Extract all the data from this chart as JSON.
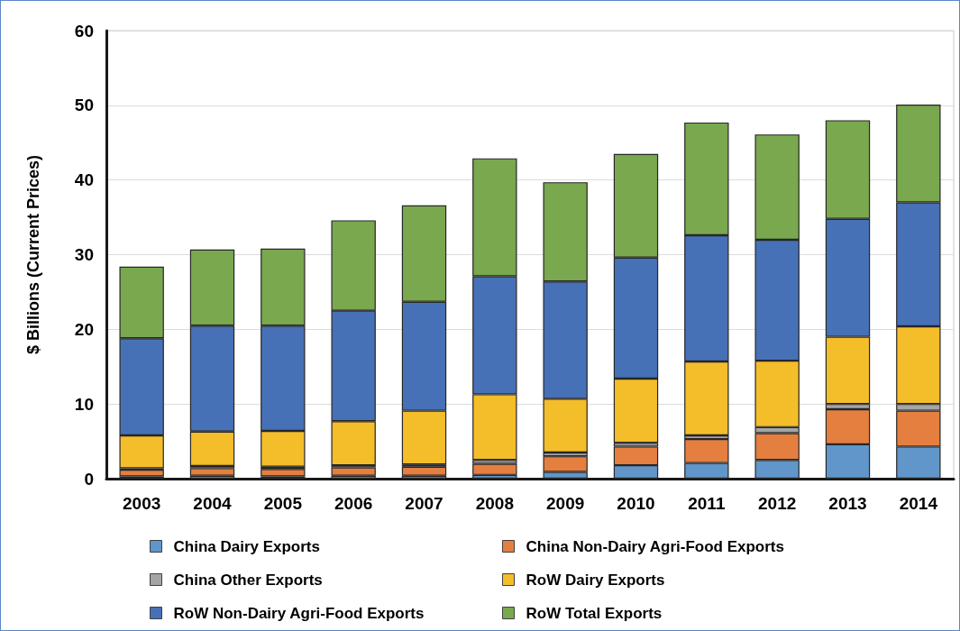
{
  "chart_data": {
    "type": "bar",
    "stacked": true,
    "ylabel": "$ Billions (Current Prices)",
    "categories": [
      "2003",
      "2004",
      "2005",
      "2006",
      "2007",
      "2008",
      "2009",
      "2010",
      "2011",
      "2012",
      "2013",
      "2014"
    ],
    "series": [
      {
        "name": "China Dairy Exports",
        "color": "#6096c9",
        "values": [
          0.3,
          0.4,
          0.3,
          0.4,
          0.4,
          0.5,
          0.9,
          1.8,
          2.1,
          2.5,
          4.6,
          4.3
        ]
      },
      {
        "name": "China Non-Dairy Agri-Food Exports",
        "color": "#e47f40",
        "values": [
          0.9,
          1.0,
          1.0,
          1.1,
          1.2,
          1.5,
          2.1,
          2.5,
          3.2,
          3.6,
          4.7,
          4.8
        ]
      },
      {
        "name": "China Other Exports",
        "color": "#a5a5a5",
        "values": [
          0.2,
          0.3,
          0.3,
          0.3,
          0.3,
          0.5,
          0.5,
          0.5,
          0.5,
          0.8,
          0.7,
          0.9
        ]
      },
      {
        "name": "RoW Dairy Exports",
        "color": "#f4bd2a",
        "values": [
          4.4,
          4.6,
          4.8,
          5.9,
          7.2,
          8.8,
          7.2,
          8.6,
          9.9,
          8.9,
          9.0,
          10.4
        ]
      },
      {
        "name": "RoW Non-Dairy Agri-Food Exports",
        "color": "#4771b6",
        "values": [
          13.0,
          14.2,
          14.1,
          14.8,
          14.6,
          15.8,
          15.7,
          16.2,
          16.9,
          16.2,
          15.8,
          16.6
        ]
      },
      {
        "name": "RoW Total Exports",
        "color": "#79a84f",
        "values": [
          9.6,
          10.2,
          10.3,
          12.1,
          12.9,
          15.8,
          13.3,
          13.9,
          15.1,
          14.1,
          13.2,
          13.1
        ]
      }
    ],
    "ylim": [
      0,
      60
    ],
    "yticks": [
      0,
      10,
      20,
      30,
      40,
      50,
      60
    ],
    "grid": "y",
    "legend": "bottom"
  }
}
